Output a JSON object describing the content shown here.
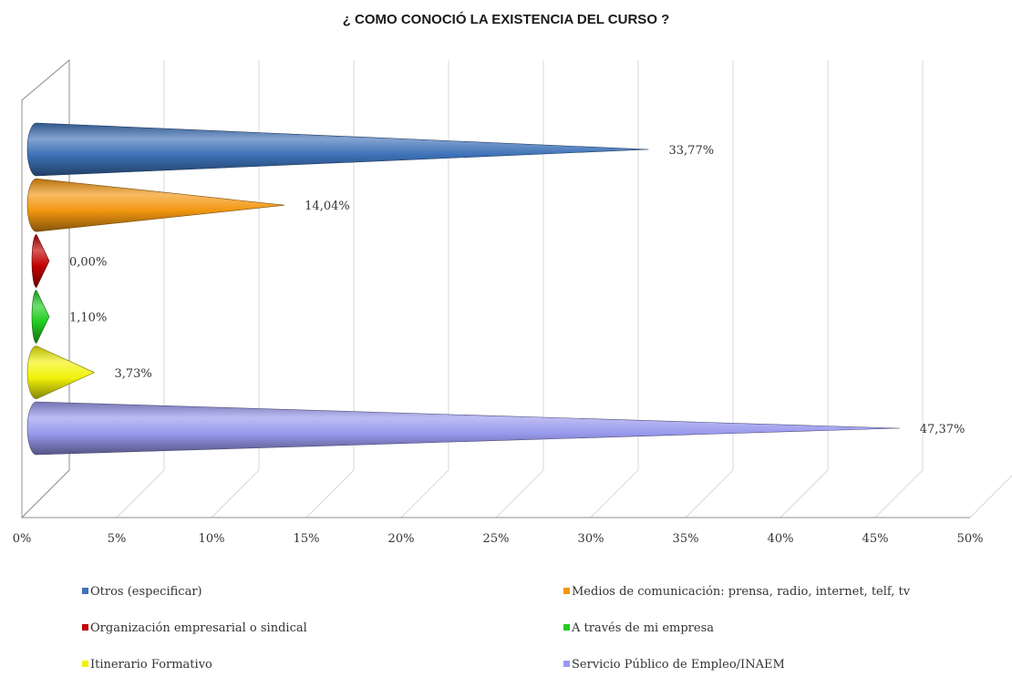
{
  "chart_data": {
    "type": "bar",
    "title": "¿ COMO CONOCIÓ LA EXISTENCIA DEL CURSO ?",
    "orientation": "horizontal",
    "xlim": [
      0,
      50
    ],
    "x_tick_labels": [
      "0%",
      "5%",
      "10%",
      "15%",
      "20%",
      "25%",
      "30%",
      "35%",
      "40%",
      "45%",
      "50%"
    ],
    "grid": true,
    "legend_position": "bottom",
    "series": [
      {
        "name": "Otros (especificar)",
        "value": 33.77,
        "label": "33,77%",
        "color": "#3e72b8"
      },
      {
        "name": "Medios de comunicación: prensa, radio, internet, telf, tv",
        "value": 14.04,
        "label": "14,04%",
        "color": "#f29711"
      },
      {
        "name": "Organización empresarial o sindical",
        "value": 0.0,
        "label": "0,00%",
        "color": "#c00000"
      },
      {
        "name": "A través de mi empresa",
        "value": 1.1,
        "label": "1,10%",
        "color": "#22cc22"
      },
      {
        "name": "Itinerario Formativo",
        "value": 3.73,
        "label": "3,73%",
        "color": "#f2f20a"
      },
      {
        "name": "Servicio Público de Empleo/INAEM",
        "value": 47.37,
        "label": "47,37%",
        "color": "#9999ee"
      }
    ]
  }
}
